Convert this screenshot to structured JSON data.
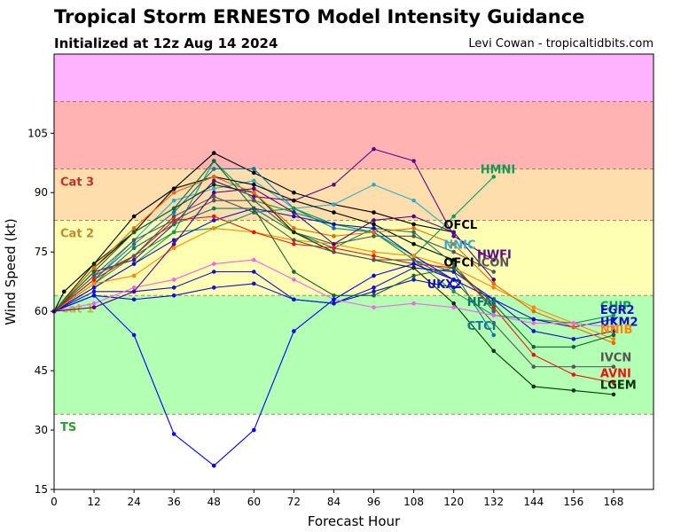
{
  "chart_data": {
    "type": "line",
    "title": "Tropical Storm ERNESTO Model Intensity Guidance",
    "subtitle": "Initialized at 12z Aug 14 2024",
    "credit": "Levi Cowan - tropicaltidbits.com",
    "xlabel": "Forecast Hour",
    "ylabel": "Wind Speed (kt)",
    "xlim": [
      0,
      180
    ],
    "ylim": [
      15,
      125
    ],
    "xticks": [
      0,
      12,
      24,
      36,
      48,
      60,
      72,
      84,
      96,
      108,
      120,
      132,
      144,
      156,
      168
    ],
    "yticks": [
      15,
      30,
      45,
      60,
      75,
      90,
      105
    ],
    "grid": false,
    "categories": [
      {
        "label": "TS",
        "low": 34,
        "high": 64,
        "fill": "#b3ffb3",
        "text_color": "#2ca02c"
      },
      {
        "label": "Cat 1",
        "low": 64,
        "high": 83,
        "fill": "#ffffb3",
        "text_color": "#bcbd22"
      },
      {
        "label": "Cat 2",
        "low": 83,
        "high": 96,
        "fill": "#ffdead",
        "text_color": "#c08a30"
      },
      {
        "label": "Cat 3",
        "low": 96,
        "high": 113,
        "fill": "#ffb3b3",
        "text_color": "#c03030"
      },
      {
        "label": "",
        "low": 113,
        "high": 125,
        "fill": "#ffb3ff",
        "text_color": "#c040c0"
      }
    ],
    "series": [
      {
        "name": "OFCL",
        "color": "#000000",
        "bold": true,
        "x": [
          0,
          3,
          12,
          24,
          36,
          48,
          60,
          72,
          84,
          96,
          108,
          120
        ],
        "y": [
          60,
          65,
          72,
          84,
          91,
          100,
          95,
          90,
          87,
          85,
          82,
          80
        ],
        "label_x": 117,
        "label_y": 82
      },
      {
        "name": "NNIC",
        "color": "#33aacc",
        "x": [
          0,
          12,
          24,
          36,
          48,
          60,
          72,
          84,
          96,
          108,
          120
        ],
        "y": [
          60,
          68,
          78,
          88,
          91,
          93,
          86,
          87,
          92,
          88,
          80
        ],
        "label_x": 117,
        "label_y": 77
      },
      {
        "name": "HWFI",
        "color": "#5c0a8a",
        "x": [
          0,
          12,
          24,
          36,
          48,
          60,
          72,
          84,
          96,
          108,
          120,
          132
        ],
        "y": [
          60,
          70,
          73,
          82,
          93,
          89,
          88,
          92,
          101,
          98,
          79,
          73
        ],
        "label_x": 127,
        "label_y": 74.5
      },
      {
        "name": "HMNI",
        "color": "#119955",
        "x": [
          0,
          12,
          24,
          36,
          48,
          60,
          72,
          84,
          96,
          108,
          120,
          132
        ],
        "y": [
          60,
          67,
          74,
          80,
          98,
          88,
          85,
          82,
          80,
          74,
          84,
          94
        ],
        "label_x": 128,
        "label_y": 96
      },
      {
        "name": "OFCI",
        "color": "#000000",
        "bold": true,
        "x": [
          0,
          12,
          24,
          36,
          48,
          60,
          72,
          84,
          96,
          108,
          120
        ],
        "y": [
          60,
          71,
          80,
          91,
          94,
          92,
          88,
          85,
          82,
          77,
          73
        ],
        "label_x": 117,
        "label_y": 72.5
      },
      {
        "name": "ICON",
        "color": "#555555",
        "x": [
          0,
          12,
          24,
          36,
          48,
          60,
          72,
          84,
          96,
          108,
          120,
          132
        ],
        "y": [
          60,
          69,
          78,
          83,
          88,
          88,
          80,
          77,
          79,
          79,
          75,
          70
        ],
        "label_x": 127,
        "label_y": 72.5
      },
      {
        "name": "UKX2",
        "color": "#1111cc",
        "x": [
          0,
          12,
          24,
          36,
          48,
          60,
          72,
          84,
          96,
          108,
          120
        ],
        "y": [
          60,
          64,
          63,
          64,
          66,
          67,
          63,
          62,
          65,
          68,
          66
        ],
        "label_x": 112,
        "label_y": 67
      },
      {
        "name": "HFAI",
        "color": "#117766",
        "x": [
          0,
          12,
          24,
          36,
          48,
          60,
          72,
          84,
          96,
          108,
          120,
          132
        ],
        "y": [
          60,
          67,
          76,
          82,
          86,
          86,
          80,
          76,
          81,
          80,
          72,
          60
        ],
        "label_x": 124,
        "label_y": 62.5
      },
      {
        "name": "CTCI",
        "color": "#117799",
        "x": [
          0,
          12,
          24,
          36,
          48,
          60,
          72,
          84,
          96,
          108,
          120,
          132
        ],
        "y": [
          60,
          68,
          77,
          85,
          96,
          96,
          86,
          81,
          80,
          73,
          70,
          54
        ],
        "label_x": 124,
        "label_y": 56.5
      },
      {
        "name": "CHIP",
        "color": "#119955",
        "x": [
          0,
          12,
          24,
          36,
          48,
          60,
          72,
          84,
          96,
          108,
          120,
          132,
          144,
          156,
          168
        ],
        "y": [
          60,
          66,
          72,
          80,
          81,
          85,
          86,
          82,
          80,
          73,
          65,
          59,
          58,
          57,
          59
        ],
        "label_x": 164,
        "label_y": 61.5
      },
      {
        "name": "EGR2",
        "color": "#1111cc",
        "x": [
          0,
          12,
          24,
          36,
          48,
          60,
          72,
          84,
          96,
          108,
          120,
          132,
          144,
          156,
          168
        ],
        "y": [
          60,
          66,
          72,
          78,
          83,
          86,
          84,
          82,
          81,
          74,
          68,
          63,
          55,
          53,
          55
        ],
        "label_x": 164,
        "label_y": 60.5
      },
      {
        "name": "UKM2",
        "color": "#1111cc",
        "x": [
          0,
          12,
          24,
          36,
          48,
          60,
          72,
          84,
          96,
          108,
          120,
          132,
          144,
          156,
          168
        ],
        "y": [
          60,
          65,
          65,
          66,
          70,
          70,
          63,
          62,
          66,
          71,
          70,
          63,
          58,
          56,
          58
        ],
        "label_x": 164,
        "label_y": 57.5
      },
      {
        "name": "NNIB",
        "color": "#ff8800",
        "x": [
          0,
          12,
          24,
          36,
          48,
          60,
          72,
          84,
          96,
          108,
          120,
          132,
          144,
          156,
          168
        ],
        "y": [
          60,
          67,
          69,
          76,
          81,
          80,
          78,
          77,
          75,
          74,
          71,
          66,
          61,
          57,
          53
        ],
        "label_x": 164,
        "label_y": 55.5
      },
      {
        "name": "LGEM",
        "color": "#003300",
        "bold": true,
        "x": [
          0,
          12,
          24,
          36,
          48,
          60,
          72,
          84,
          96,
          108,
          120,
          132,
          144,
          156,
          168
        ],
        "y": [
          60,
          72,
          80,
          86,
          92,
          90,
          80,
          75,
          73,
          71,
          62,
          50,
          41,
          40,
          39
        ],
        "label_x": 164,
        "label_y": 41.5
      },
      {
        "name": "AVNI",
        "color": "#ee1111",
        "x": [
          0,
          12,
          24,
          36,
          48,
          60,
          72,
          84,
          96,
          108,
          120,
          132,
          144,
          156,
          168
        ],
        "y": [
          60,
          68,
          74,
          83,
          84,
          80,
          77,
          76,
          74,
          72,
          71,
          61,
          49,
          44,
          42
        ],
        "label_x": 164,
        "label_y": 44.5
      },
      {
        "name": "IVCN",
        "color": "#555555",
        "x": [
          0,
          12,
          24,
          36,
          48,
          60,
          72,
          84,
          96,
          108,
          120,
          132,
          144,
          156,
          168
        ],
        "y": [
          60,
          69,
          74,
          84,
          89,
          85,
          78,
          75,
          73,
          73,
          68,
          57,
          46,
          46,
          46
        ],
        "label_x": 164,
        "label_y": 48.5
      },
      {
        "name": "",
        "color": "#ee66ee",
        "x": [
          0,
          12,
          24,
          36,
          48,
          60,
          72,
          84,
          96,
          108,
          120,
          132,
          144,
          156,
          168
        ],
        "y": [
          60,
          62,
          66,
          68,
          72,
          73,
          68,
          63,
          61,
          62,
          61,
          59,
          57,
          57,
          56
        ]
      },
      {
        "name": "",
        "color": "#0000ff",
        "x": [
          0,
          12,
          24,
          36,
          48,
          60,
          72,
          84,
          96,
          108,
          120
        ],
        "y": [
          60,
          64,
          54,
          29,
          21,
          30,
          55,
          63,
          69,
          72,
          68
        ]
      },
      {
        "name": "",
        "color": "#ee6600",
        "x": [
          0,
          12,
          24,
          36,
          48,
          60,
          72,
          84,
          96,
          108,
          120,
          132,
          144,
          156,
          168
        ],
        "y": [
          60,
          71,
          81,
          90,
          94,
          90,
          81,
          79,
          80,
          81,
          77,
          67,
          60,
          56,
          52
        ]
      },
      {
        "name": "",
        "color": "#116633",
        "x": [
          0,
          12,
          24,
          36,
          48,
          60,
          72,
          84,
          96,
          108,
          120,
          132,
          144,
          156,
          168
        ],
        "y": [
          60,
          70,
          80,
          86,
          98,
          86,
          70,
          64,
          64,
          69,
          71,
          62,
          51,
          51,
          54
        ]
      },
      {
        "name": "",
        "color": "#550088",
        "x": [
          0,
          12,
          24,
          36,
          48,
          60,
          72,
          84,
          96,
          108,
          120,
          132
        ],
        "y": [
          60,
          61,
          65,
          77,
          90,
          91,
          85,
          77,
          83,
          84,
          80,
          68
        ]
      }
    ]
  }
}
